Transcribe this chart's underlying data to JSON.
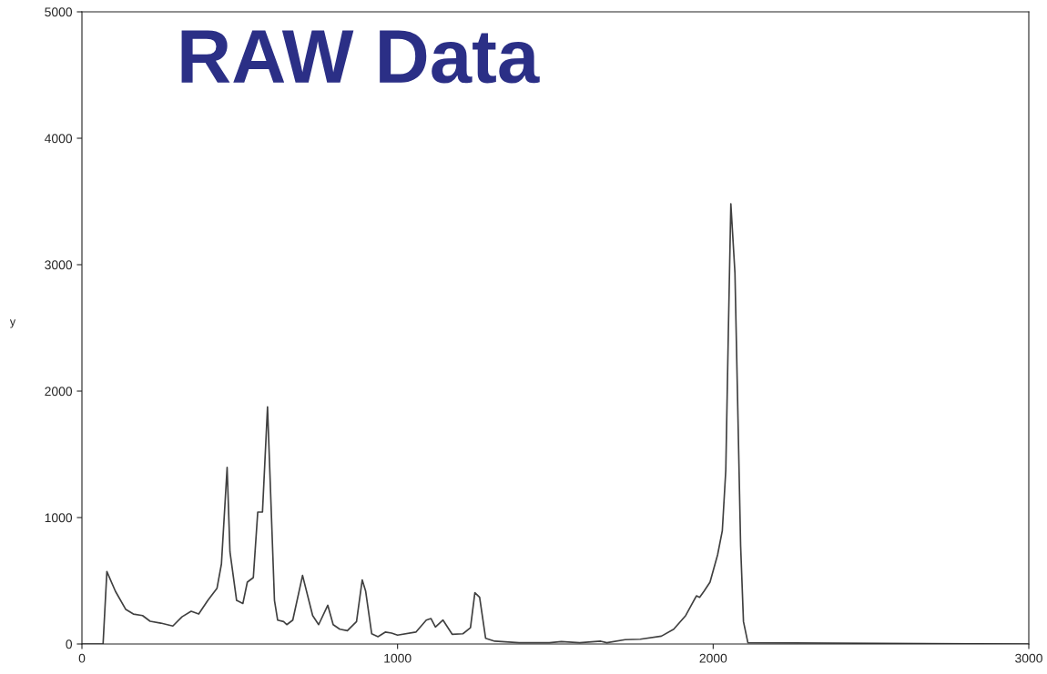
{
  "chart_data": {
    "type": "line",
    "title": "RAW Data",
    "ylabel": "y",
    "x": [
      0,
      67,
      79,
      106,
      139,
      163,
      192,
      216,
      250,
      288,
      317,
      346,
      370,
      399,
      428,
      442,
      460,
      469,
      490,
      510,
      524,
      543,
      557,
      572,
      588,
      610,
      620,
      639,
      649,
      668,
      699,
      731,
      750,
      779,
      796,
      817,
      841,
      870,
      888,
      899,
      918,
      938,
      961,
      981,
      1000,
      1058,
      1091,
      1106,
      1120,
      1144,
      1173,
      1207,
      1231,
      1245,
      1260,
      1279,
      1308,
      1385,
      1481,
      1519,
      1577,
      1644,
      1663,
      1721,
      1769,
      1836,
      1875,
      1913,
      1947,
      1957,
      1971,
      1990,
      2014,
      2029,
      2040,
      2048,
      2056,
      2069,
      2077,
      2087,
      2096,
      2110,
      3000
    ],
    "series": [
      {
        "color": "#404040",
        "values": [
          0,
          0,
          573,
          417,
          273,
          237,
          225,
          180,
          165,
          142,
          215,
          259,
          237,
          345,
          441,
          633,
          1396,
          729,
          345,
          321,
          489,
          525,
          1043,
          1043,
          1875,
          345,
          189,
          177,
          153,
          189,
          542,
          225,
          153,
          306,
          153,
          117,
          105,
          177,
          507,
          417,
          81,
          58,
          94,
          86,
          70,
          94,
          189,
          201,
          134,
          189,
          77,
          81,
          129,
          405,
          369,
          45,
          22,
          10,
          10,
          19,
          10,
          22,
          10,
          34,
          38,
          62,
          117,
          225,
          381,
          369,
          417,
          489,
          705,
          897,
          1376,
          2455,
          3482,
          2935,
          1976,
          777,
          177,
          10,
          0
        ]
      }
    ],
    "xlim": [
      0,
      3000
    ],
    "ylim": [
      0,
      5000
    ],
    "xticks": [
      0,
      1000,
      2000,
      3000
    ],
    "yticks": [
      0,
      1000,
      2000,
      3000,
      4000,
      5000
    ],
    "grid": false,
    "marker": "none",
    "line_style": "solid"
  }
}
